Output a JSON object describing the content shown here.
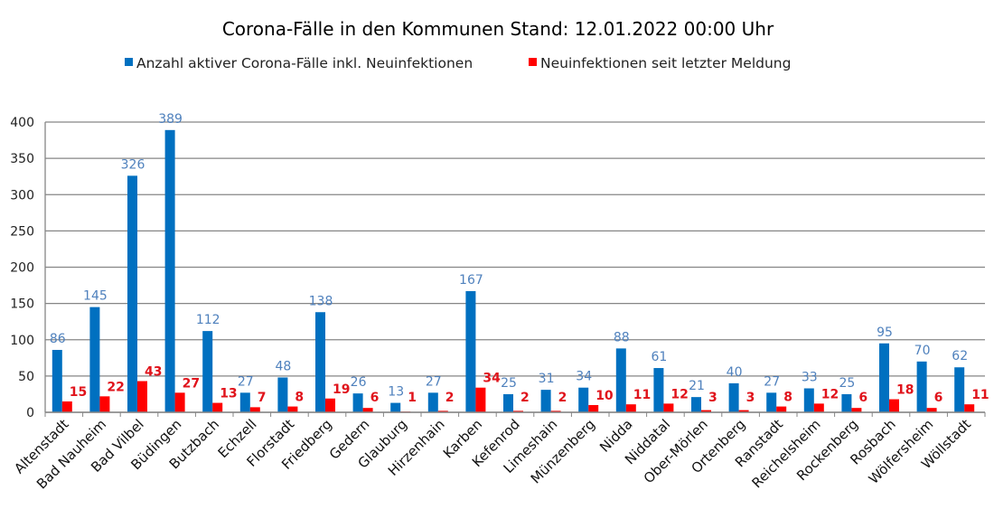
{
  "chart_data": {
    "type": "bar",
    "title": "Corona-Fälle in den Kommunen Stand: 12.01.2022 00:00 Uhr",
    "xlabel": "",
    "ylabel": "",
    "ylim": [
      0,
      400
    ],
    "yticks": [
      0,
      50,
      100,
      150,
      200,
      250,
      300,
      350,
      400
    ],
    "grid": true,
    "legend_position": "top",
    "categories": [
      "Altenstadt",
      "Bad Nauheim",
      "Bad Vilbel",
      "Büdingen",
      "Butzbach",
      "Echzell",
      "Florstadt",
      "Friedberg",
      "Gedern",
      "Glauburg",
      "Hirzenhain",
      "Karben",
      "Kefenrod",
      "Limeshain",
      "Münzenberg",
      "Nidda",
      "Niddatal",
      "Ober-Mörlen",
      "Ortenberg",
      "Ranstadt",
      "Reichelsheim",
      "Rockenberg",
      "Rosbach",
      "Wölfersheim",
      "Wöllstadt"
    ],
    "series": [
      {
        "name": "Anzahl aktiver Corona-Fälle inkl. Neuinfektionen",
        "color": "#0070c0",
        "label_color": "#4f81bd",
        "values": [
          86,
          145,
          326,
          389,
          112,
          27,
          48,
          138,
          26,
          13,
          27,
          167,
          25,
          31,
          34,
          88,
          61,
          21,
          40,
          27,
          33,
          25,
          95,
          70,
          62
        ]
      },
      {
        "name": "Neuinfektionen seit letzter Meldung",
        "color": "#ff0000",
        "label_color": "#e0131b",
        "values": [
          15,
          22,
          43,
          27,
          13,
          7,
          8,
          19,
          6,
          1,
          2,
          34,
          2,
          2,
          10,
          11,
          12,
          3,
          3,
          8,
          12,
          6,
          18,
          6,
          11
        ]
      }
    ]
  }
}
